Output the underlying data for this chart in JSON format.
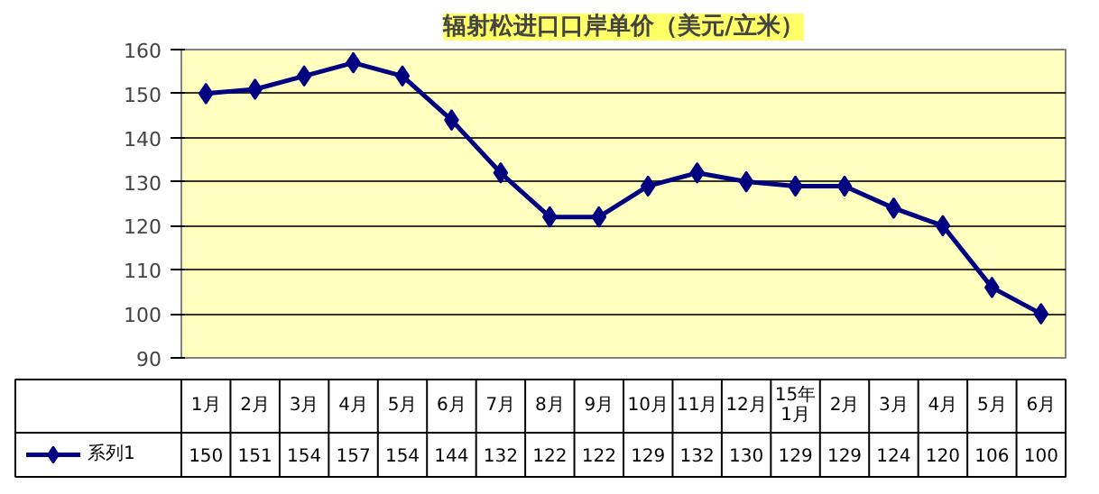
{
  "chart_data": {
    "type": "line",
    "title": "辐射松进口口岸单价（美元/立米）",
    "categories": [
      "1月",
      "2月",
      "3月",
      "4月",
      "5月",
      "6月",
      "7月",
      "8月",
      "9月",
      "10月",
      "11月",
      "12月",
      "15年1月",
      "2月",
      "3月",
      "4月",
      "5月",
      "6月"
    ],
    "series": [
      {
        "name": "系列1",
        "color": "#000080",
        "values": [
          150,
          151,
          154,
          157,
          154,
          144,
          132,
          122,
          122,
          129,
          132,
          130,
          129,
          129,
          124,
          120,
          106,
          100
        ]
      }
    ],
    "ylim": [
      90,
      160
    ],
    "yticks": [
      90,
      100,
      110,
      120,
      130,
      140,
      150,
      160
    ],
    "grid": "y",
    "marker": "diamond",
    "line_style": "solid",
    "legend": "bottom",
    "data_labels": true
  }
}
